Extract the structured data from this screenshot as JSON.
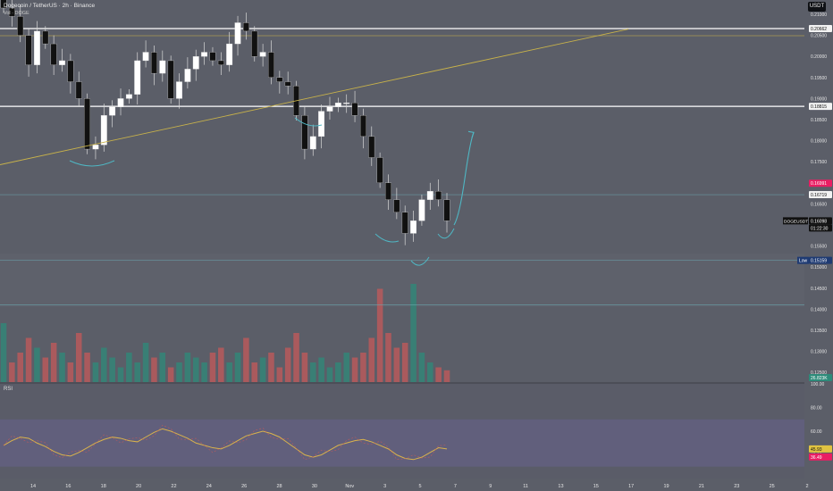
{
  "header": {
    "symbol_title": "Dogecoin / TetherUS · 2h · Binance",
    "indicator_label": "Vol · DOGE"
  },
  "currency_button": "USDT",
  "rsi_label": "RSI",
  "colors": {
    "background": "#5b5e68",
    "up_candle": "#ffffff",
    "down_candle": "#111111",
    "vol_up": "#2e8b7a",
    "vol_down": "#c45a5a",
    "trendline": "#c8b24a",
    "resistance_line": "#ffffff",
    "support_line": "#6ba7b0",
    "rsi_line": "#d9b24c",
    "rsi_band": "#66608a",
    "red_tag": "#e91e63",
    "navy_tag": "#1f3b73"
  },
  "chart_data": [
    {
      "type": "candlestick",
      "title": "Dogecoin / TetherUS · 2h · Binance",
      "x_tick_labels": [
        "14",
        "16",
        "18",
        "20",
        "22",
        "24",
        "26",
        "28",
        "30",
        "Nov",
        "3",
        "5",
        "7",
        "9",
        "11",
        "13",
        "15",
        "17",
        "19",
        "21",
        "23",
        "25",
        "2"
      ],
      "y_tick_labels": [
        "0.21000",
        "0.20500",
        "0.20000",
        "0.19500",
        "0.19000",
        "0.18500",
        "0.18000",
        "0.17500",
        "0.17000",
        "0.16500",
        "0.16000",
        "0.15500",
        "0.15000",
        "0.14500",
        "0.14000",
        "0.13500",
        "0.13000",
        "0.12500"
      ],
      "ylim": [
        0.1227,
        0.2134
      ],
      "series": [
        {
          "name": "DOGEUSDT",
          "close_approx": [
            0.2115,
            0.2095,
            0.205,
            0.198,
            0.206,
            0.203,
            0.198,
            0.199,
            0.194,
            0.19,
            0.178,
            0.179,
            0.186,
            0.188,
            0.19,
            0.191,
            0.199,
            0.201,
            0.196,
            0.199,
            0.19,
            0.194,
            0.197,
            0.2,
            0.201,
            0.199,
            0.198,
            0.203,
            0.208,
            0.206,
            0.2,
            0.201,
            0.195,
            0.194,
            0.193,
            0.186,
            0.178,
            0.181,
            0.187,
            0.188,
            0.189,
            0.189,
            0.186,
            0.181,
            0.176,
            0.17,
            0.166,
            0.163,
            0.158,
            0.161,
            0.166,
            0.168,
            0.166,
            0.161
          ]
        }
      ],
      "horizontal_levels": [
        {
          "value": 0.20662,
          "label": "0.20662"
        },
        {
          "value": 0.18815,
          "label": "0.18815"
        },
        {
          "value": 0.16719,
          "label": "0.16719"
        },
        {
          "value": 0.15159,
          "label": "0.15159",
          "prefix": "Low"
        },
        {
          "value": 0.141,
          "label": ""
        }
      ],
      "price_tags": [
        {
          "label": "0.16991",
          "style": "red"
        },
        {
          "label": "0.16098",
          "style": "dark",
          "symbol": "DOGEUSDT",
          "countdown": "01:22:30"
        },
        {
          "label": "26.823K",
          "style": "vol"
        }
      ],
      "trendline": {
        "from": {
          "x": "13",
          "y": 0.1743
        },
        "to": {
          "x": "17",
          "y": 0.2065
        }
      },
      "projection_arrow": {
        "from": {
          "x": "6",
          "y": 0.16
        },
        "to": {
          "x": "7",
          "y": 0.179
        }
      }
    },
    {
      "type": "bar",
      "title": "Volume",
      "values_relative": [
        0.6,
        0.2,
        0.3,
        0.45,
        0.35,
        0.25,
        0.4,
        0.3,
        0.2,
        0.5,
        0.3,
        0.2,
        0.35,
        0.25,
        0.15,
        0.3,
        0.2,
        0.4,
        0.25,
        0.3,
        0.15,
        0.2,
        0.3,
        0.25,
        0.2,
        0.3,
        0.35,
        0.2,
        0.3,
        0.45,
        0.2,
        0.25,
        0.3,
        0.15,
        0.35,
        0.5,
        0.3,
        0.2,
        0.25,
        0.15,
        0.2,
        0.3,
        0.25,
        0.3,
        0.45,
        0.95,
        0.5,
        0.35,
        0.4,
        1.0,
        0.3,
        0.2,
        0.15,
        0.12
      ]
    },
    {
      "type": "line",
      "title": "RSI",
      "y_tick_labels": [
        "100.00",
        "80.00",
        "60.00",
        "40.00"
      ],
      "ylim": [
        20,
        100
      ],
      "band": [
        30,
        70
      ],
      "values": [
        48,
        52,
        55,
        54,
        50,
        47,
        43,
        40,
        39,
        42,
        46,
        50,
        53,
        55,
        54,
        52,
        51,
        55,
        59,
        62,
        60,
        57,
        54,
        50,
        48,
        46,
        45,
        48,
        52,
        56,
        58,
        60,
        58,
        55,
        50,
        45,
        40,
        38,
        40,
        44,
        48,
        50,
        52,
        53,
        51,
        48,
        45,
        40,
        37,
        36,
        38,
        42,
        46,
        45
      ],
      "current_labels": [
        {
          "label": "45.93",
          "style": "yellow"
        },
        {
          "label": "36.49",
          "style": "red"
        }
      ]
    }
  ]
}
